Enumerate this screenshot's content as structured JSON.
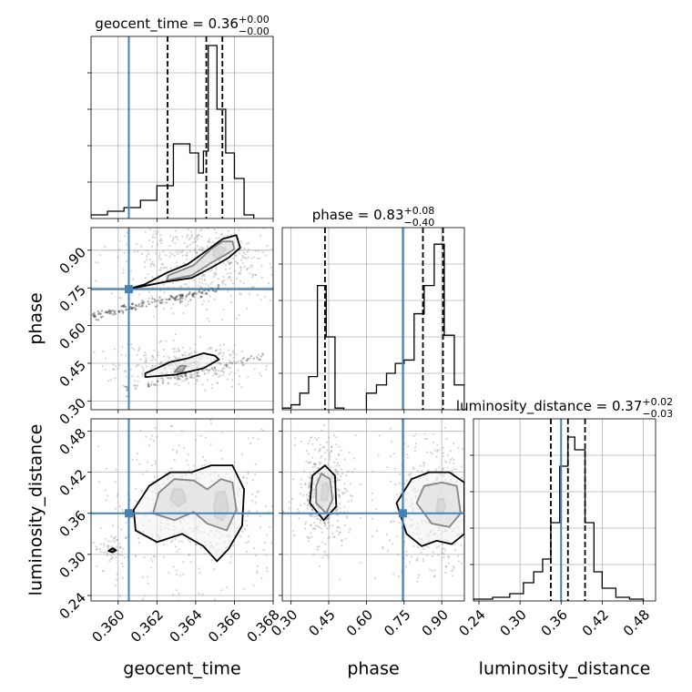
{
  "chart_data": {
    "type": "corner",
    "parameters": [
      "geocent_time",
      "phase",
      "luminosity_distance"
    ],
    "truths": [
      0.36055,
      0.745,
      0.36
    ],
    "titles": [
      {
        "param": "geocent_time",
        "text": "geocent_time = 0.36",
        "sup": "+0.00",
        "sub": "−0.00"
      },
      {
        "param": "phase",
        "text": "phase = 0.83",
        "sup": "+0.08",
        "sub": "−0.40"
      },
      {
        "param": "luminosity_distance",
        "text": "luminosity_distance = 0.37",
        "sup": "+0.02",
        "sub": "−0.03"
      }
    ],
    "axes": {
      "geocent_time": {
        "range": [
          0.3586,
          0.368
        ],
        "ticks": [
          0.36,
          0.362,
          0.364,
          0.366,
          0.368
        ],
        "tick_labels": [
          "0.360",
          "0.362",
          "0.364",
          "0.366",
          "0.368"
        ],
        "label": "geocent_time"
      },
      "phase": {
        "range": [
          0.265,
          0.99
        ],
        "ticks": [
          0.3,
          0.45,
          0.6,
          0.75,
          0.9
        ],
        "tick_labels": [
          "0.30",
          "0.45",
          "0.60",
          "0.75",
          "0.90"
        ],
        "label": "phase"
      },
      "luminosity_distance": {
        "range": [
          0.232,
          0.498
        ],
        "ticks": [
          0.24,
          0.3,
          0.36,
          0.42,
          0.48
        ],
        "tick_labels": [
          "0.24",
          "0.30",
          "0.36",
          "0.42",
          "0.48"
        ],
        "label": "luminosity_distance"
      }
    },
    "histograms": {
      "geocent_time": {
        "quantiles": [
          0.36255,
          0.36455,
          0.36538
        ],
        "bins": [
          {
            "x0": 0.3586,
            "x1": 0.35945,
            "v": 2
          },
          {
            "x0": 0.35945,
            "x1": 0.3603,
            "v": 4
          },
          {
            "x0": 0.3603,
            "x1": 0.36115,
            "v": 6
          },
          {
            "x0": 0.36115,
            "x1": 0.362,
            "v": 10
          },
          {
            "x0": 0.362,
            "x1": 0.36285,
            "v": 18
          },
          {
            "x0": 0.36285,
            "x1": 0.3637,
            "v": 41
          },
          {
            "x0": 0.3637,
            "x1": 0.36415,
            "v": 36
          },
          {
            "x0": 0.36415,
            "x1": 0.3644,
            "v": 25
          },
          {
            "x0": 0.3644,
            "x1": 0.36465,
            "v": 37
          },
          {
            "x0": 0.36465,
            "x1": 0.3651,
            "v": 95
          },
          {
            "x0": 0.3651,
            "x1": 0.36555,
            "v": 60
          },
          {
            "x0": 0.36555,
            "x1": 0.366,
            "v": 36
          },
          {
            "x0": 0.366,
            "x1": 0.3665,
            "v": 22
          },
          {
            "x0": 0.3665,
            "x1": 0.367,
            "v": 2
          }
        ],
        "ymax": 100
      },
      "phase": {
        "quantiles": [
          0.435,
          0.825,
          0.905
        ],
        "bins": [
          {
            "x0": 0.265,
            "x1": 0.3,
            "v": 1
          },
          {
            "x0": 0.3,
            "x1": 0.335,
            "v": 3
          },
          {
            "x0": 0.335,
            "x1": 0.37,
            "v": 10
          },
          {
            "x0": 0.37,
            "x1": 0.405,
            "v": 20
          },
          {
            "x0": 0.405,
            "x1": 0.44,
            "v": 75
          },
          {
            "x0": 0.44,
            "x1": 0.475,
            "v": 44
          },
          {
            "x0": 0.475,
            "x1": 0.51,
            "v": 1
          },
          {
            "x0": 0.6,
            "x1": 0.64,
            "v": 10
          },
          {
            "x0": 0.64,
            "x1": 0.68,
            "v": 15
          },
          {
            "x0": 0.68,
            "x1": 0.715,
            "v": 22
          },
          {
            "x0": 0.715,
            "x1": 0.75,
            "v": 28
          },
          {
            "x0": 0.75,
            "x1": 0.79,
            "v": 30
          },
          {
            "x0": 0.79,
            "x1": 0.83,
            "v": 58
          },
          {
            "x0": 0.83,
            "x1": 0.87,
            "v": 75
          },
          {
            "x0": 0.87,
            "x1": 0.91,
            "v": 100
          },
          {
            "x0": 0.91,
            "x1": 0.95,
            "v": 45
          },
          {
            "x0": 0.95,
            "x1": 0.99,
            "v": 15
          }
        ],
        "ymax": 110
      },
      "luminosity_distance": {
        "quantiles": [
          0.345,
          0.37,
          0.395
        ],
        "bins": [
          {
            "x0": 0.232,
            "x1": 0.26,
            "v": 1
          },
          {
            "x0": 0.26,
            "x1": 0.285,
            "v": 2
          },
          {
            "x0": 0.285,
            "x1": 0.305,
            "v": 4
          },
          {
            "x0": 0.305,
            "x1": 0.32,
            "v": 10
          },
          {
            "x0": 0.32,
            "x1": 0.333,
            "v": 16
          },
          {
            "x0": 0.333,
            "x1": 0.345,
            "v": 23
          },
          {
            "x0": 0.345,
            "x1": 0.358,
            "v": 43
          },
          {
            "x0": 0.358,
            "x1": 0.37,
            "v": 74
          },
          {
            "x0": 0.37,
            "x1": 0.38,
            "v": 90
          },
          {
            "x0": 0.38,
            "x1": 0.395,
            "v": 83
          },
          {
            "x0": 0.395,
            "x1": 0.408,
            "v": 43
          },
          {
            "x0": 0.408,
            "x1": 0.42,
            "v": 16
          },
          {
            "x0": 0.42,
            "x1": 0.44,
            "v": 7
          },
          {
            "x0": 0.44,
            "x1": 0.46,
            "v": 2
          },
          {
            "x0": 0.46,
            "x1": 0.48,
            "v": 1
          }
        ],
        "ymax": 100
      }
    },
    "contours": {
      "phase_vs_geocent_time": [
        {
          "level": "inner",
          "points": [
            [
              0.3651,
              0.87
            ],
            [
              0.3654,
              0.885
            ],
            [
              0.36555,
              0.905
            ],
            [
              0.36525,
              0.915
            ],
            [
              0.36495,
              0.9
            ],
            [
              0.3649,
              0.88
            ]
          ]
        },
        {
          "level": "mid",
          "points": [
            [
              0.3625,
              0.78
            ],
            [
              0.3638,
              0.8
            ],
            [
              0.3648,
              0.85
            ],
            [
              0.3655,
              0.88
            ],
            [
              0.366,
              0.905
            ],
            [
              0.3659,
              0.935
            ],
            [
              0.3654,
              0.935
            ],
            [
              0.3648,
              0.905
            ],
            [
              0.3639,
              0.84
            ],
            [
              0.3626,
              0.8
            ]
          ]
        },
        {
          "level": "outer",
          "points": [
            [
              0.3605,
              0.745
            ],
            [
              0.3625,
              0.775
            ],
            [
              0.3638,
              0.79
            ],
            [
              0.3648,
              0.83
            ],
            [
              0.3657,
              0.87
            ],
            [
              0.3663,
              0.91
            ],
            [
              0.3661,
              0.96
            ],
            [
              0.3654,
              0.945
            ],
            [
              0.3646,
              0.9
            ],
            [
              0.3636,
              0.845
            ],
            [
              0.3625,
              0.81
            ],
            [
              0.3614,
              0.765
            ]
          ]
        },
        {
          "level": "inner",
          "points": [
            [
              0.3629,
              0.415
            ],
            [
              0.3633,
              0.415
            ],
            [
              0.3635,
              0.44
            ],
            [
              0.3632,
              0.44
            ]
          ]
        },
        {
          "level": "outer",
          "points": [
            [
              0.3614,
              0.395
            ],
            [
              0.363,
              0.405
            ],
            [
              0.3644,
              0.43
            ],
            [
              0.3652,
              0.465
            ],
            [
              0.365,
              0.48
            ],
            [
              0.3644,
              0.49
            ],
            [
              0.3636,
              0.47
            ],
            [
              0.3627,
              0.455
            ],
            [
              0.362,
              0.43
            ],
            [
              0.3614,
              0.41
            ]
          ]
        }
      ],
      "luminosity_distance_vs_geocent_time": [
        {
          "level": "inner",
          "points": [
            [
              0.3627,
              0.38
            ],
            [
              0.3631,
              0.37
            ],
            [
              0.3635,
              0.378
            ],
            [
              0.3633,
              0.395
            ],
            [
              0.36285,
              0.395
            ]
          ]
        },
        {
          "level": "inner",
          "points": [
            [
              0.365,
              0.355
            ],
            [
              0.3654,
              0.35
            ],
            [
              0.3657,
              0.365
            ],
            [
              0.3655,
              0.392
            ],
            [
              0.3651,
              0.39
            ],
            [
              0.36495,
              0.372
            ]
          ]
        },
        {
          "level": "mid",
          "points": [
            [
              0.3618,
              0.36
            ],
            [
              0.3629,
              0.35
            ],
            [
              0.3639,
              0.362
            ],
            [
              0.3646,
              0.345
            ],
            [
              0.3656,
              0.335
            ],
            [
              0.3661,
              0.365
            ],
            [
              0.3659,
              0.405
            ],
            [
              0.3653,
              0.41
            ],
            [
              0.3646,
              0.395
            ],
            [
              0.3639,
              0.408
            ],
            [
              0.3629,
              0.41
            ],
            [
              0.3621,
              0.39
            ]
          ]
        },
        {
          "level": "outer",
          "points": [
            [
              0.3609,
              0.335
            ],
            [
              0.362,
              0.318
            ],
            [
              0.3633,
              0.33
            ],
            [
              0.3644,
              0.312
            ],
            [
              0.3651,
              0.29
            ],
            [
              0.3657,
              0.308
            ],
            [
              0.3664,
              0.342
            ],
            [
              0.3665,
              0.395
            ],
            [
              0.3659,
              0.43
            ],
            [
              0.3648,
              0.43
            ],
            [
              0.3638,
              0.42
            ],
            [
              0.3627,
              0.42
            ],
            [
              0.3616,
              0.4
            ],
            [
              0.3608,
              0.365
            ]
          ]
        },
        {
          "level": "inner",
          "points": [
            [
              0.3595,
              0.305
            ],
            [
              0.3597,
              0.303
            ],
            [
              0.3599,
              0.306
            ],
            [
              0.3597,
              0.309
            ]
          ]
        }
      ],
      "luminosity_distance_vs_phase": [
        {
          "level": "inner",
          "points": [
            [
              0.42,
              0.38
            ],
            [
              0.44,
              0.378
            ],
            [
              0.45,
              0.395
            ],
            [
              0.44,
              0.405
            ],
            [
              0.425,
              0.402
            ]
          ]
        },
        {
          "level": "mid",
          "points": [
            [
              0.4,
              0.375
            ],
            [
              0.44,
              0.36
            ],
            [
              0.465,
              0.38
            ],
            [
              0.455,
              0.41
            ],
            [
              0.42,
              0.418
            ],
            [
              0.4,
              0.4
            ]
          ]
        },
        {
          "level": "outer",
          "points": [
            [
              0.375,
              0.375
            ],
            [
              0.43,
              0.35
            ],
            [
              0.48,
              0.37
            ],
            [
              0.475,
              0.415
            ],
            [
              0.435,
              0.43
            ],
            [
              0.385,
              0.415
            ]
          ]
        },
        {
          "level": "inner",
          "points": [
            [
              0.88,
              0.362
            ],
            [
              0.9,
              0.358
            ],
            [
              0.915,
              0.37
            ],
            [
              0.905,
              0.382
            ],
            [
              0.885,
              0.38
            ]
          ]
        },
        {
          "level": "mid",
          "points": [
            [
              0.8,
              0.375
            ],
            [
              0.86,
              0.345
            ],
            [
              0.93,
              0.34
            ],
            [
              0.975,
              0.36
            ],
            [
              0.96,
              0.4
            ],
            [
              0.9,
              0.405
            ],
            [
              0.83,
              0.4
            ]
          ]
        },
        {
          "level": "outer",
          "points": [
            [
              0.72,
              0.375
            ],
            [
              0.76,
              0.33
            ],
            [
              0.82,
              0.312
            ],
            [
              0.88,
              0.32
            ],
            [
              0.94,
              0.315
            ],
            [
              0.99,
              0.33
            ],
            [
              0.99,
              0.405
            ],
            [
              0.93,
              0.42
            ],
            [
              0.85,
              0.42
            ],
            [
              0.78,
              0.41
            ]
          ]
        }
      ]
    },
    "colors": {
      "truth": "#4682b4",
      "line": "#000000",
      "grid": "#b0b0b0",
      "scatter": "#888888"
    }
  }
}
